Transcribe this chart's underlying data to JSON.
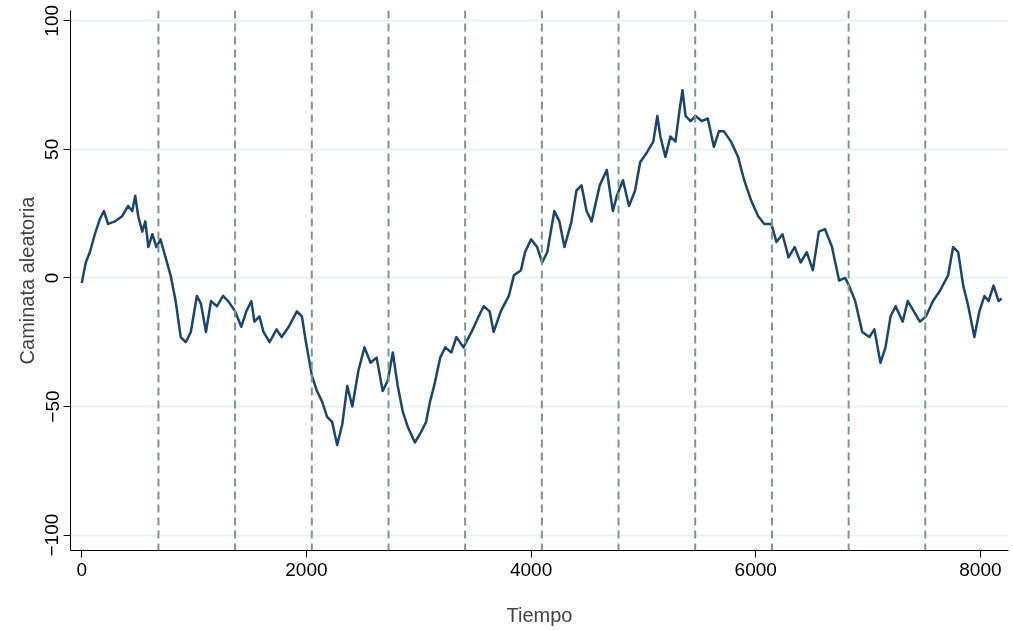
{
  "chart_data": {
    "type": "line",
    "xlabel": "Tiempo",
    "ylabel": "Caminata aleatoria",
    "x": [
      0,
      36,
      72,
      117,
      162,
      198,
      234,
      297,
      360,
      413,
      450,
      476,
      503,
      539,
      566,
      593,
      629,
      665,
      701,
      746,
      791,
      836,
      881,
      926,
      971,
      1025,
      1061,
      1106,
      1151,
      1204,
      1258,
      1303,
      1366,
      1420,
      1465,
      1510,
      1537,
      1582,
      1618,
      1672,
      1735,
      1780,
      1843,
      1915,
      1960,
      1996,
      2049,
      2094,
      2139,
      2184,
      2229,
      2274,
      2319,
      2364,
      2409,
      2463,
      2517,
      2571,
      2625,
      2679,
      2724,
      2769,
      2813,
      2858,
      2903,
      2966,
      3020,
      3065,
      3101,
      3137,
      3191,
      3236,
      3290,
      3335,
      3398,
      3470,
      3533,
      3578,
      3631,
      3667,
      3730,
      3802,
      3847,
      3910,
      3946,
      4000,
      4054,
      4099,
      4144,
      4207,
      4252,
      4297,
      4360,
      4404,
      4449,
      4494,
      4539,
      4611,
      4674,
      4728,
      4764,
      4818,
      4872,
      4926,
      4971,
      5034,
      5088,
      5124,
      5151,
      5196,
      5240,
      5285,
      5321,
      5348,
      5375,
      5420,
      5465,
      5519,
      5573,
      5627,
      5672,
      5717,
      5780,
      5843,
      5897,
      5960,
      6022,
      6076,
      6139,
      6184,
      6238,
      6292,
      6346,
      6400,
      6454,
      6508,
      6562,
      6616,
      6679,
      6742,
      6796,
      6831,
      6885,
      6948,
      7011,
      7056,
      7110,
      7155,
      7200,
      7245,
      7308,
      7353,
      7407,
      7461,
      7515,
      7578,
      7640,
      7712,
      7757,
      7802,
      7847,
      7892,
      7946,
      7991,
      8036,
      8072,
      8117,
      8162,
      8189
    ],
    "series": [
      {
        "color": "#1a476f",
        "values": [
          -2,
          6,
          10,
          17,
          23,
          26,
          21,
          22,
          24,
          28,
          26,
          32,
          24,
          18,
          22,
          12,
          17,
          12,
          15,
          8,
          1,
          -9,
          -23,
          -25,
          -21,
          -7,
          -10,
          -21,
          -9,
          -11,
          -7,
          -9,
          -13,
          -19,
          -13,
          -9,
          -17,
          -15,
          -21,
          -25,
          -20,
          -23,
          -19,
          -13,
          -15,
          -25,
          -38,
          -44,
          -48,
          -54,
          -56,
          -65,
          -57,
          -42,
          -50,
          -36,
          -27,
          -33,
          -31,
          -44,
          -40,
          -29,
          -42,
          -52,
          -58,
          -64,
          -60,
          -56,
          -48,
          -42,
          -31,
          -27,
          -29,
          -23,
          -27,
          -21,
          -15,
          -11,
          -13,
          -21,
          -13,
          -7,
          1,
          3,
          10,
          15,
          12,
          6,
          10,
          26,
          22,
          12,
          22,
          34,
          36,
          26,
          22,
          36,
          42,
          26,
          32,
          38,
          28,
          34,
          45,
          49,
          53,
          63,
          55,
          47,
          55,
          53,
          65,
          73,
          63,
          61,
          63,
          61,
          62,
          51,
          57,
          57,
          53,
          47,
          38,
          30,
          24,
          21,
          21,
          14,
          17,
          8,
          12,
          6,
          10,
          3,
          18,
          19,
          12,
          -1,
          0,
          -3,
          -9,
          -21,
          -23,
          -20,
          -33,
          -27,
          -15,
          -11,
          -17,
          -9,
          -13,
          -17,
          -15,
          -9,
          -5,
          1,
          12,
          10,
          -3,
          -11,
          -23,
          -13,
          -7,
          -9,
          -3,
          -9,
          -8
        ]
      }
    ],
    "xlim": [
      -100,
      8250
    ],
    "ylim": [
      -106,
      104
    ],
    "xticks": [
      0,
      2000,
      4000,
      6000,
      8000
    ],
    "yticks": [
      -100,
      -50,
      0,
      50,
      100
    ],
    "grid": "y",
    "line_style": "solid",
    "ref_lines": [
      {
        "axis": "x",
        "value": 683,
        "color": "#7a9a8a",
        "line_style": "dashed"
      },
      {
        "axis": "x",
        "value": 1365,
        "color": "#7a9a8a",
        "line_style": "dashed"
      },
      {
        "axis": "x",
        "value": 2048,
        "color": "#7a9a8a",
        "line_style": "dashed"
      },
      {
        "axis": "x",
        "value": 2731,
        "color": "#7a9a8a",
        "line_style": "dashed"
      },
      {
        "axis": "x",
        "value": 3413,
        "color": "#7a9a8a",
        "line_style": "dashed"
      },
      {
        "axis": "x",
        "value": 4096,
        "color": "#7a9a8a",
        "line_style": "dashed"
      },
      {
        "axis": "x",
        "value": 4779,
        "color": "#7a9a8a",
        "line_style": "dashed"
      },
      {
        "axis": "x",
        "value": 5461,
        "color": "#7a9a8a",
        "line_style": "dashed"
      },
      {
        "axis": "x",
        "value": 6144,
        "color": "#7a9a8a",
        "line_style": "dashed"
      },
      {
        "axis": "x",
        "value": 6827,
        "color": "#7a9a8a",
        "line_style": "dashed"
      },
      {
        "axis": "x",
        "value": 7509,
        "color": "#7a9a8a",
        "line_style": "dashed"
      }
    ]
  }
}
